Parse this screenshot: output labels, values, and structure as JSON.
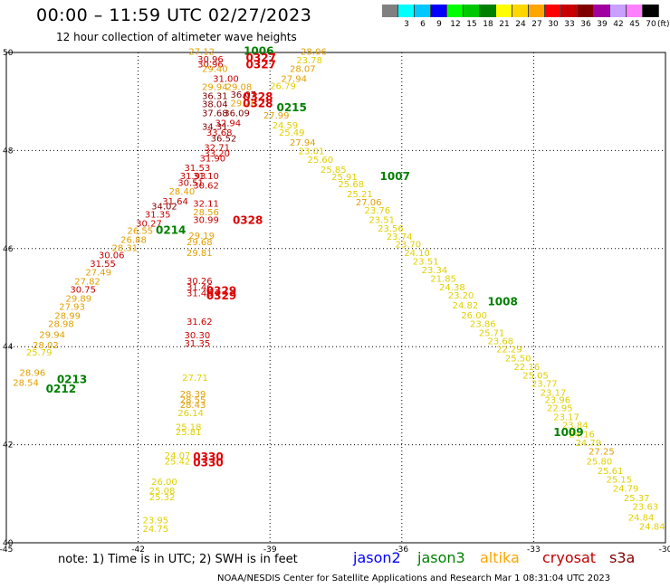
{
  "title": "00:00 – 11:59 UTC 02/27/2023",
  "subtitle": "12 hour collection of altimeter wave heights",
  "legend": {
    "colors": [
      "#808080",
      "#00ffff",
      "#00c8ff",
      "#0000ff",
      "#00ff00",
      "#00c800",
      "#008000",
      "#ffff00",
      "#ffd700",
      "#ffa500",
      "#ff0000",
      "#c80000",
      "#800000",
      "#a000a0",
      "#c8a0ff",
      "#ff80ff",
      "#000000"
    ],
    "labels": [
      "",
      "3",
      "6",
      "9",
      "12",
      "15",
      "18",
      "21",
      "24",
      "27",
      "30",
      "33",
      "36",
      "39",
      "42",
      "45",
      "70"
    ],
    "unit": "(ft)"
  },
  "map": {
    "lon_ticks": [
      "-45",
      "-42",
      "-39",
      "-36",
      "-33",
      "-30"
    ],
    "lat_ticks": [
      "50",
      "48",
      "46",
      "44",
      "42",
      "40"
    ],
    "lon_range": [
      -45,
      -30
    ],
    "lat_range": [
      40,
      50
    ]
  },
  "note": "note: 1) Time is in UTC; 2) SWH is in feet",
  "satellites": [
    {
      "name": "jason2",
      "color": "#0000ff"
    },
    {
      "name": "jason3",
      "color": "#008000"
    },
    {
      "name": "altika",
      "color": "#ffa500"
    },
    {
      "name": "cryosat",
      "color": "#c00000"
    },
    {
      "name": "s3a",
      "color": "#800000"
    }
  ],
  "footer": "NOAA/NESDIS Center for Satellite Applications and Research   Mar  1 08:31:04 UTC 2023",
  "time_labels": [
    {
      "text": "1006",
      "lon": -39.6,
      "lat": 49.95,
      "color": "#008000"
    },
    {
      "text": "0327",
      "lon": -39.55,
      "lat": 49.82,
      "color": "#e00000"
    },
    {
      "text": "0327",
      "lon": -39.55,
      "lat": 49.68,
      "color": "#e00000"
    },
    {
      "text": "0328",
      "lon": -39.62,
      "lat": 49.02,
      "color": "#e00000"
    },
    {
      "text": "0328",
      "lon": -39.62,
      "lat": 48.88,
      "color": "#e00000"
    },
    {
      "text": "0215",
      "lon": -38.85,
      "lat": 48.8,
      "color": "#008000"
    },
    {
      "text": "1007",
      "lon": -36.5,
      "lat": 47.4,
      "color": "#008000"
    },
    {
      "text": "0328",
      "lon": -39.85,
      "lat": 46.5,
      "color": "#e00000"
    },
    {
      "text": "0214",
      "lon": -41.6,
      "lat": 46.3,
      "color": "#008000"
    },
    {
      "text": "0329",
      "lon": -40.45,
      "lat": 45.06,
      "color": "#e00000"
    },
    {
      "text": "0329",
      "lon": -40.45,
      "lat": 44.96,
      "color": "#e00000"
    },
    {
      "text": "1008",
      "lon": -34.05,
      "lat": 44.84,
      "color": "#008000"
    },
    {
      "text": "0213",
      "lon": -43.85,
      "lat": 43.26,
      "color": "#008000"
    },
    {
      "text": "0212",
      "lon": -44.1,
      "lat": 43.06,
      "color": "#008000"
    },
    {
      "text": "1009",
      "lon": -32.55,
      "lat": 42.18,
      "color": "#008000"
    },
    {
      "text": "0330",
      "lon": -40.75,
      "lat": 41.68,
      "color": "#e00000"
    },
    {
      "text": "0330",
      "lon": -40.75,
      "lat": 41.56,
      "color": "#e00000"
    }
  ],
  "height_labels": [
    {
      "text": "27.12",
      "lon": -40.85,
      "lat": 49.95,
      "color": "#e0a000"
    },
    {
      "text": "30.96",
      "lon": -40.65,
      "lat": 49.8,
      "color": "#c80000"
    },
    {
      "text": "30.96",
      "lon": -40.65,
      "lat": 49.7,
      "color": "#c80000"
    },
    {
      "text": "29.40",
      "lon": -40.55,
      "lat": 49.6,
      "color": "#e0a000"
    },
    {
      "text": "31.00",
      "lon": -40.3,
      "lat": 49.4,
      "color": "#c80000"
    },
    {
      "text": "29.94",
      "lon": -40.55,
      "lat": 49.23,
      "color": "#e0a000"
    },
    {
      "text": "29.08",
      "lon": -40.0,
      "lat": 49.23,
      "color": "#e0a000"
    },
    {
      "text": "36.31",
      "lon": -40.55,
      "lat": 49.05,
      "color": "#800000"
    },
    {
      "text": "36.07",
      "lon": -39.9,
      "lat": 49.08,
      "color": "#800000"
    },
    {
      "text": "38.04",
      "lon": -40.55,
      "lat": 48.88,
      "color": "#800000"
    },
    {
      "text": "29.26",
      "lon": -39.9,
      "lat": 48.9,
      "color": "#e0a000"
    },
    {
      "text": "37.68",
      "lon": -40.55,
      "lat": 48.7,
      "color": "#800000"
    },
    {
      "text": "36.09",
      "lon": -40.05,
      "lat": 48.7,
      "color": "#800000"
    },
    {
      "text": "32.94",
      "lon": -40.25,
      "lat": 48.5,
      "color": "#c80000"
    },
    {
      "text": "34.31",
      "lon": -40.55,
      "lat": 48.42,
      "color": "#800000"
    },
    {
      "text": "33.68",
      "lon": -40.45,
      "lat": 48.3,
      "color": "#c80000"
    },
    {
      "text": "36.52",
      "lon": -40.35,
      "lat": 48.18,
      "color": "#800000"
    },
    {
      "text": "32.71",
      "lon": -40.5,
      "lat": 48.0,
      "color": "#c80000"
    },
    {
      "text": "33.20",
      "lon": -40.5,
      "lat": 47.88,
      "color": "#c80000"
    },
    {
      "text": "31.90",
      "lon": -40.6,
      "lat": 47.78,
      "color": "#c80000"
    },
    {
      "text": "31.53",
      "lon": -40.95,
      "lat": 47.58,
      "color": "#c80000"
    },
    {
      "text": "31.93",
      "lon": -41.05,
      "lat": 47.42,
      "color": "#c80000"
    },
    {
      "text": "31.10",
      "lon": -40.75,
      "lat": 47.42,
      "color": "#c80000"
    },
    {
      "text": "30.51",
      "lon": -41.1,
      "lat": 47.28,
      "color": "#c80000"
    },
    {
      "text": "30.62",
      "lon": -40.75,
      "lat": 47.22,
      "color": "#c80000"
    },
    {
      "text": "28.40",
      "lon": -41.3,
      "lat": 47.1,
      "color": "#e0a000"
    },
    {
      "text": "31.64",
      "lon": -41.45,
      "lat": 46.9,
      "color": "#c80000"
    },
    {
      "text": "32.11",
      "lon": -40.75,
      "lat": 46.85,
      "color": "#c80000"
    },
    {
      "text": "34.02",
      "lon": -41.7,
      "lat": 46.8,
      "color": "#800000"
    },
    {
      "text": "28.56",
      "lon": -40.75,
      "lat": 46.68,
      "color": "#e0a000"
    },
    {
      "text": "31.35",
      "lon": -41.85,
      "lat": 46.63,
      "color": "#c80000"
    },
    {
      "text": "30.99",
      "lon": -40.75,
      "lat": 46.52,
      "color": "#c80000"
    },
    {
      "text": "30.27",
      "lon": -42.05,
      "lat": 46.45,
      "color": "#c80000"
    },
    {
      "text": "29.19",
      "lon": -40.85,
      "lat": 46.2,
      "color": "#e0a000"
    },
    {
      "text": "26.55",
      "lon": -42.25,
      "lat": 46.3,
      "color": "#e0a000"
    },
    {
      "text": "26.88",
      "lon": -42.4,
      "lat": 46.12,
      "color": "#e0a000"
    },
    {
      "text": "29.68",
      "lon": -40.9,
      "lat": 46.07,
      "color": "#e0a000"
    },
    {
      "text": "28.31",
      "lon": -42.6,
      "lat": 45.95,
      "color": "#e0a000"
    },
    {
      "text": "29.81",
      "lon": -40.9,
      "lat": 45.85,
      "color": "#e0a000"
    },
    {
      "text": "30.06",
      "lon": -42.9,
      "lat": 45.8,
      "color": "#c80000"
    },
    {
      "text": "31.55",
      "lon": -43.1,
      "lat": 45.63,
      "color": "#c80000"
    },
    {
      "text": "27.49",
      "lon": -43.2,
      "lat": 45.45,
      "color": "#e0a000"
    },
    {
      "text": "30.26",
      "lon": -40.9,
      "lat": 45.28,
      "color": "#c80000"
    },
    {
      "text": "27.82",
      "lon": -43.45,
      "lat": 45.27,
      "color": "#e0a000"
    },
    {
      "text": "31.46",
      "lon": -40.9,
      "lat": 45.15,
      "color": "#c80000"
    },
    {
      "text": "30.75",
      "lon": -43.55,
      "lat": 45.1,
      "color": "#c80000"
    },
    {
      "text": "31.46",
      "lon": -40.9,
      "lat": 45.03,
      "color": "#c80000"
    },
    {
      "text": "29.89",
      "lon": -43.65,
      "lat": 44.92,
      "color": "#e0a000"
    },
    {
      "text": "27.93",
      "lon": -43.8,
      "lat": 44.75,
      "color": "#e0a000"
    },
    {
      "text": "28.99",
      "lon": -43.9,
      "lat": 44.57,
      "color": "#e0a000"
    },
    {
      "text": "31.62",
      "lon": -40.9,
      "lat": 44.45,
      "color": "#c80000"
    },
    {
      "text": "28.98",
      "lon": -44.05,
      "lat": 44.4,
      "color": "#e0a000"
    },
    {
      "text": "29.94",
      "lon": -44.25,
      "lat": 44.18,
      "color": "#e0a000"
    },
    {
      "text": "30.30",
      "lon": -40.95,
      "lat": 44.17,
      "color": "#c80000"
    },
    {
      "text": "31.35",
      "lon": -40.95,
      "lat": 44.0,
      "color": "#c80000"
    },
    {
      "text": "28.02",
      "lon": -44.4,
      "lat": 43.97,
      "color": "#e0a000"
    },
    {
      "text": "25.79",
      "lon": -44.55,
      "lat": 43.82,
      "color": "#e0d000"
    },
    {
      "text": "28.96",
      "lon": -44.7,
      "lat": 43.4,
      "color": "#e0a000"
    },
    {
      "text": "28.54",
      "lon": -44.85,
      "lat": 43.2,
      "color": "#e0a000"
    },
    {
      "text": "27.71",
      "lon": -41.0,
      "lat": 43.3,
      "color": "#e0d000"
    },
    {
      "text": "28.39",
      "lon": -41.05,
      "lat": 42.97,
      "color": "#e0a000"
    },
    {
      "text": "28.55",
      "lon": -41.05,
      "lat": 42.85,
      "color": "#e0a000"
    },
    {
      "text": "28.43",
      "lon": -41.05,
      "lat": 42.75,
      "color": "#e0a000"
    },
    {
      "text": "26.14",
      "lon": -41.1,
      "lat": 42.58,
      "color": "#e0d000"
    },
    {
      "text": "25.18",
      "lon": -41.15,
      "lat": 42.3,
      "color": "#e0d000"
    },
    {
      "text": "25.81",
      "lon": -41.15,
      "lat": 42.2,
      "color": "#e0d000"
    },
    {
      "text": "24.07",
      "lon": -41.4,
      "lat": 41.72,
      "color": "#e0d000"
    },
    {
      "text": "25.42",
      "lon": -41.4,
      "lat": 41.6,
      "color": "#e0d000"
    },
    {
      "text": "26.00",
      "lon": -41.7,
      "lat": 41.18,
      "color": "#e0d000"
    },
    {
      "text": "25.08",
      "lon": -41.75,
      "lat": 41.0,
      "color": "#e0d000"
    },
    {
      "text": "25.32",
      "lon": -41.75,
      "lat": 40.87,
      "color": "#e0d000"
    },
    {
      "text": "23.95",
      "lon": -41.9,
      "lat": 40.4,
      "color": "#e0d000"
    },
    {
      "text": "24.75",
      "lon": -41.9,
      "lat": 40.22,
      "color": "#e0d000"
    },
    {
      "text": "28.06",
      "lon": -38.3,
      "lat": 49.95,
      "color": "#e0a000"
    },
    {
      "text": "23.78",
      "lon": -38.4,
      "lat": 49.78,
      "color": "#e0d000"
    },
    {
      "text": "28.07",
      "lon": -38.55,
      "lat": 49.6,
      "color": "#e0a000"
    },
    {
      "text": "27.94",
      "lon": -38.75,
      "lat": 49.4,
      "color": "#e0a000"
    },
    {
      "text": "26.79",
      "lon": -39.0,
      "lat": 49.25,
      "color": "#e0d000"
    },
    {
      "text": "24.59",
      "lon": -38.95,
      "lat": 48.45,
      "color": "#e0d000"
    },
    {
      "text": "27.99",
      "lon": -39.15,
      "lat": 48.65,
      "color": "#e0a000"
    },
    {
      "text": "25.49",
      "lon": -38.8,
      "lat": 48.3,
      "color": "#e0d000"
    },
    {
      "text": "27.94",
      "lon": -38.55,
      "lat": 48.1,
      "color": "#e0a000"
    },
    {
      "text": "23.01",
      "lon": -38.35,
      "lat": 47.92,
      "color": "#e0d000"
    },
    {
      "text": "25.60",
      "lon": -38.15,
      "lat": 47.75,
      "color": "#e0d000"
    },
    {
      "text": "25.85",
      "lon": -37.85,
      "lat": 47.55,
      "color": "#e0d000"
    },
    {
      "text": "25.91",
      "lon": -37.6,
      "lat": 47.4,
      "color": "#e0d000"
    },
    {
      "text": "25.68",
      "lon": -37.45,
      "lat": 47.25,
      "color": "#e0d000"
    },
    {
      "text": "25.21",
      "lon": -37.25,
      "lat": 47.05,
      "color": "#e0d000"
    },
    {
      "text": "27.06",
      "lon": -37.05,
      "lat": 46.88,
      "color": "#e0a000"
    },
    {
      "text": "23.76",
      "lon": -36.85,
      "lat": 46.72,
      "color": "#e0d000"
    },
    {
      "text": "23.51",
      "lon": -36.75,
      "lat": 46.52,
      "color": "#e0d000"
    },
    {
      "text": "23.56",
      "lon": -36.55,
      "lat": 46.35,
      "color": "#e0d000"
    },
    {
      "text": "23.74",
      "lon": -36.35,
      "lat": 46.18,
      "color": "#e0d000"
    },
    {
      "text": "23.70",
      "lon": -36.15,
      "lat": 46.02,
      "color": "#e0d000"
    },
    {
      "text": "24.10",
      "lon": -35.95,
      "lat": 45.85,
      "color": "#e0d000"
    },
    {
      "text": "23.51",
      "lon": -35.75,
      "lat": 45.67,
      "color": "#e0d000"
    },
    {
      "text": "23.34",
      "lon": -35.55,
      "lat": 45.5,
      "color": "#e0d000"
    },
    {
      "text": "21.85",
      "lon": -35.35,
      "lat": 45.32,
      "color": "#e0d000"
    },
    {
      "text": "24.38",
      "lon": -35.15,
      "lat": 45.15,
      "color": "#e0d000"
    },
    {
      "text": "23.20",
      "lon": -34.95,
      "lat": 44.98,
      "color": "#e0d000"
    },
    {
      "text": "24.82",
      "lon": -34.85,
      "lat": 44.78,
      "color": "#e0d000"
    },
    {
      "text": "26.00",
      "lon": -34.65,
      "lat": 44.58,
      "color": "#e0d000"
    },
    {
      "text": "23.86",
      "lon": -34.45,
      "lat": 44.4,
      "color": "#e0d000"
    },
    {
      "text": "25.71",
      "lon": -34.25,
      "lat": 44.22,
      "color": "#e0d000"
    },
    {
      "text": "23.68",
      "lon": -34.05,
      "lat": 44.05,
      "color": "#e0d000"
    },
    {
      "text": "22.29",
      "lon": -33.85,
      "lat": 43.88,
      "color": "#e0d000"
    },
    {
      "text": "25.50",
      "lon": -33.65,
      "lat": 43.7,
      "color": "#e0d000"
    },
    {
      "text": "22.16",
      "lon": -33.45,
      "lat": 43.52,
      "color": "#e0d000"
    },
    {
      "text": "25.05",
      "lon": -33.25,
      "lat": 43.35,
      "color": "#e0d000"
    },
    {
      "text": "23.77",
      "lon": -33.05,
      "lat": 43.18,
      "color": "#e0d000"
    },
    {
      "text": "23.17",
      "lon": -32.85,
      "lat": 43.0,
      "color": "#e0d000"
    },
    {
      "text": "23.96",
      "lon": -32.75,
      "lat": 42.85,
      "color": "#e0d000"
    },
    {
      "text": "22.95",
      "lon": -32.7,
      "lat": 42.68,
      "color": "#e0d000"
    },
    {
      "text": "23.17",
      "lon": -32.55,
      "lat": 42.5,
      "color": "#e0d000"
    },
    {
      "text": "23.84",
      "lon": -32.35,
      "lat": 42.33,
      "color": "#e0d000"
    },
    {
      "text": "24.16",
      "lon": -32.2,
      "lat": 42.15,
      "color": "#e0d000"
    },
    {
      "text": "24.79",
      "lon": -32.05,
      "lat": 41.97,
      "color": "#e0d000"
    },
    {
      "text": "27.25",
      "lon": -31.75,
      "lat": 41.8,
      "color": "#e0a000"
    },
    {
      "text": "25.80",
      "lon": -31.8,
      "lat": 41.6,
      "color": "#e0d000"
    },
    {
      "text": "25.61",
      "lon": -31.55,
      "lat": 41.4,
      "color": "#e0d000"
    },
    {
      "text": "25.15",
      "lon": -31.35,
      "lat": 41.23,
      "color": "#e0d000"
    },
    {
      "text": "24.79",
      "lon": -31.2,
      "lat": 41.04,
      "color": "#e0d000"
    },
    {
      "text": "25.37",
      "lon": -30.95,
      "lat": 40.85,
      "color": "#e0d000"
    },
    {
      "text": "23.63",
      "lon": -30.75,
      "lat": 40.67,
      "color": "#e0d000"
    },
    {
      "text": "24.84",
      "lon": -30.85,
      "lat": 40.45,
      "color": "#e0d000"
    },
    {
      "text": "24.84",
      "lon": -30.6,
      "lat": 40.27,
      "color": "#e0d000"
    }
  ]
}
